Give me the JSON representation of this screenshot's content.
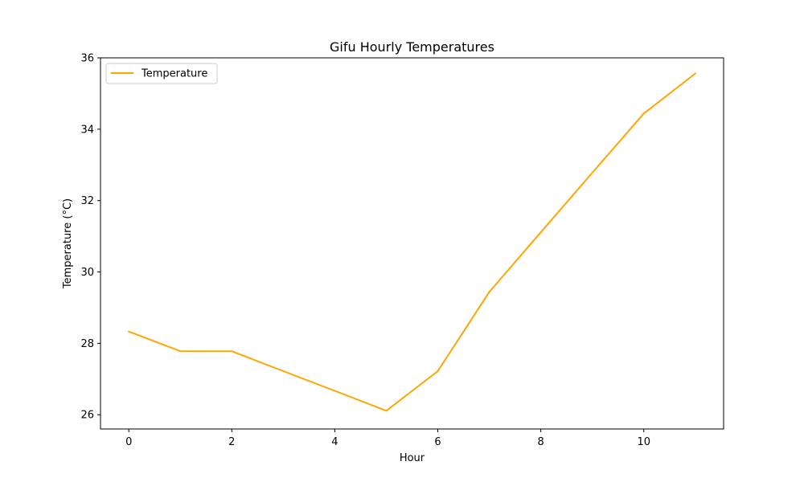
{
  "chart_data": {
    "type": "line",
    "title": "Gifu Hourly Temperatures",
    "xlabel": "Hour",
    "ylabel": "Temperature (°C)",
    "xlim": [
      -0.55,
      11.55
    ],
    "ylim": [
      25.6,
      36.0
    ],
    "xticks": [
      0,
      2,
      4,
      6,
      8,
      10
    ],
    "yticks": [
      26,
      28,
      30,
      32,
      34,
      36
    ],
    "grid": false,
    "legend": {
      "position": "top-left"
    },
    "series": [
      {
        "name": "Temperature",
        "color": "#ffa500",
        "x": [
          0,
          1,
          2,
          3,
          4,
          5,
          6,
          7,
          8,
          9,
          10,
          11
        ],
        "y": [
          28.33,
          27.78,
          27.78,
          27.22,
          26.67,
          26.11,
          27.22,
          29.44,
          31.11,
          32.78,
          34.44,
          35.56
        ]
      }
    ]
  }
}
